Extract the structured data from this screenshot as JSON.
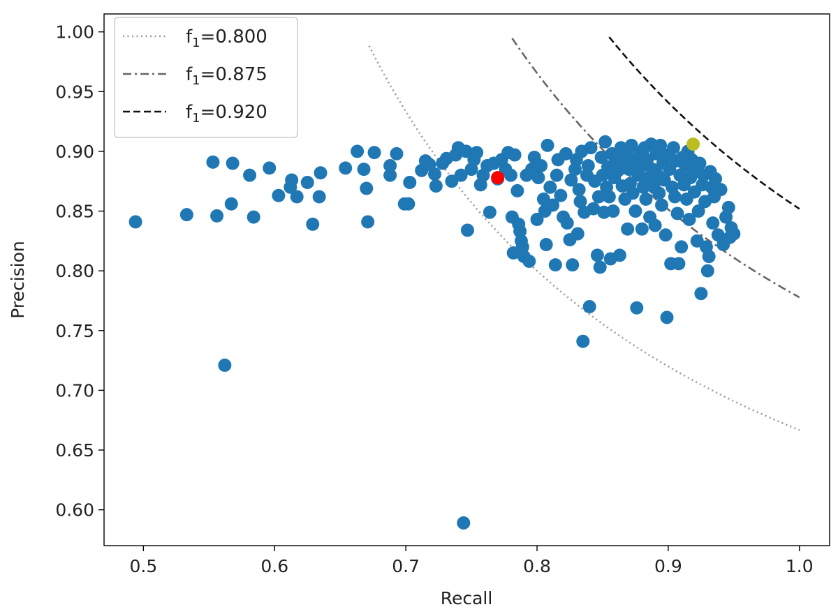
{
  "chart_data": {
    "type": "scatter",
    "xlabel": "Recall",
    "ylabel": "Precision",
    "xlim": [
      0.47,
      1.023
    ],
    "ylim": [
      0.57,
      1.015
    ],
    "xticks": [
      0.5,
      0.6,
      0.7,
      0.8,
      0.9,
      1.0
    ],
    "xtick_labels": [
      "0.5",
      "0.6",
      "0.7",
      "0.8",
      "0.9",
      "1.0"
    ],
    "yticks": [
      0.6,
      0.65,
      0.7,
      0.75,
      0.8,
      0.85,
      0.9,
      0.95,
      1.0
    ],
    "ytick_labels": [
      "0.60",
      "0.65",
      "0.70",
      "0.75",
      "0.80",
      "0.85",
      "0.90",
      "0.95",
      "1.00"
    ],
    "grid": false,
    "legend_position": "top-left",
    "colors": {
      "points": "#1f77b4",
      "highlight_red": "#ff0000",
      "highlight_olive": "#bcbd22"
    },
    "iso_f1_curves": [
      {
        "f1": 0.8,
        "label_prefix": "f",
        "label_sub": "1",
        "label_value": "=0.800",
        "style": "dotted",
        "color": "#999999",
        "recall_range": [
          0.672,
          1.0
        ]
      },
      {
        "f1": 0.875,
        "label_prefix": "f",
        "label_sub": "1",
        "label_value": "=0.875",
        "style": "dashdot",
        "color": "#666666",
        "recall_range": [
          0.781,
          1.0
        ]
      },
      {
        "f1": 0.92,
        "label_prefix": "f",
        "label_sub": "1",
        "label_value": "=0.920",
        "style": "dashed",
        "color": "#111111",
        "recall_range": [
          0.855,
          1.0
        ]
      }
    ],
    "highlight_points": [
      {
        "x": 0.77,
        "y": 0.878,
        "color": "#ff0000"
      },
      {
        "x": 0.919,
        "y": 0.906,
        "color": "#bcbd22"
      }
    ],
    "points": [
      [
        0.494,
        0.841
      ],
      [
        0.533,
        0.847
      ],
      [
        0.553,
        0.891
      ],
      [
        0.556,
        0.846
      ],
      [
        0.562,
        0.721
      ],
      [
        0.567,
        0.856
      ],
      [
        0.568,
        0.89
      ],
      [
        0.581,
        0.88
      ],
      [
        0.584,
        0.845
      ],
      [
        0.596,
        0.886
      ],
      [
        0.603,
        0.863
      ],
      [
        0.612,
        0.87
      ],
      [
        0.613,
        0.876
      ],
      [
        0.617,
        0.862
      ],
      [
        0.625,
        0.874
      ],
      [
        0.629,
        0.839
      ],
      [
        0.634,
        0.862
      ],
      [
        0.635,
        0.882
      ],
      [
        0.654,
        0.886
      ],
      [
        0.663,
        0.9
      ],
      [
        0.668,
        0.885
      ],
      [
        0.67,
        0.869
      ],
      [
        0.671,
        0.841
      ],
      [
        0.676,
        0.899
      ],
      [
        0.688,
        0.88
      ],
      [
        0.688,
        0.888
      ],
      [
        0.693,
        0.898
      ],
      [
        0.699,
        0.856
      ],
      [
        0.702,
        0.856
      ],
      [
        0.703,
        0.874
      ],
      [
        0.712,
        0.884
      ],
      [
        0.715,
        0.892
      ],
      [
        0.718,
        0.889
      ],
      [
        0.722,
        0.881
      ],
      [
        0.723,
        0.871
      ],
      [
        0.728,
        0.89
      ],
      [
        0.731,
        0.894
      ],
      [
        0.735,
        0.875
      ],
      [
        0.738,
        0.897
      ],
      [
        0.74,
        0.903
      ],
      [
        0.742,
        0.88
      ],
      [
        0.744,
        0.589
      ],
      [
        0.746,
        0.9
      ],
      [
        0.747,
        0.834
      ],
      [
        0.75,
        0.885
      ],
      [
        0.752,
        0.893
      ],
      [
        0.754,
        0.899
      ],
      [
        0.757,
        0.872
      ],
      [
        0.759,
        0.88
      ],
      [
        0.762,
        0.888
      ],
      [
        0.764,
        0.849
      ],
      [
        0.767,
        0.89
      ],
      [
        0.77,
        0.877
      ],
      [
        0.773,
        0.893
      ],
      [
        0.776,
        0.885
      ],
      [
        0.778,
        0.899
      ],
      [
        0.78,
        0.88
      ],
      [
        0.781,
        0.845
      ],
      [
        0.782,
        0.815
      ],
      [
        0.783,
        0.897
      ],
      [
        0.785,
        0.867
      ],
      [
        0.786,
        0.839
      ],
      [
        0.787,
        0.833
      ],
      [
        0.788,
        0.825
      ],
      [
        0.789,
        0.82
      ],
      [
        0.79,
        0.812
      ],
      [
        0.792,
        0.88
      ],
      [
        0.794,
        0.808
      ],
      [
        0.796,
        0.885
      ],
      [
        0.798,
        0.895
      ],
      [
        0.8,
        0.843
      ],
      [
        0.801,
        0.878
      ],
      [
        0.803,
        0.888
      ],
      [
        0.805,
        0.86
      ],
      [
        0.806,
        0.85
      ],
      [
        0.807,
        0.822
      ],
      [
        0.808,
        0.905
      ],
      [
        0.81,
        0.87
      ],
      [
        0.812,
        0.855
      ],
      [
        0.814,
        0.805
      ],
      [
        0.815,
        0.88
      ],
      [
        0.816,
        0.893
      ],
      [
        0.818,
        0.863
      ],
      [
        0.82,
        0.845
      ],
      [
        0.822,
        0.898
      ],
      [
        0.823,
        0.84
      ],
      [
        0.825,
        0.826
      ],
      [
        0.826,
        0.876
      ],
      [
        0.827,
        0.805
      ],
      [
        0.829,
        0.885
      ],
      [
        0.83,
        0.893
      ],
      [
        0.831,
        0.831
      ],
      [
        0.832,
        0.868
      ],
      [
        0.833,
        0.858
      ],
      [
        0.834,
        0.9
      ],
      [
        0.835,
        0.741
      ],
      [
        0.836,
        0.849
      ],
      [
        0.838,
        0.88
      ],
      [
        0.839,
        0.888
      ],
      [
        0.84,
        0.77
      ],
      [
        0.841,
        0.903
      ],
      [
        0.843,
        0.852
      ],
      [
        0.844,
        0.875
      ],
      [
        0.846,
        0.813
      ],
      [
        0.847,
        0.862
      ],
      [
        0.848,
        0.803
      ],
      [
        0.849,
        0.895
      ],
      [
        0.85,
        0.88
      ],
      [
        0.851,
        0.849
      ],
      [
        0.852,
        0.908
      ],
      [
        0.853,
        0.87
      ],
      [
        0.854,
        0.887
      ],
      [
        0.855,
        0.862
      ],
      [
        0.856,
        0.81
      ],
      [
        0.857,
        0.898
      ],
      [
        0.858,
        0.85
      ],
      [
        0.859,
        0.878
      ],
      [
        0.86,
        0.893
      ],
      [
        0.862,
        0.884
      ],
      [
        0.863,
        0.813
      ],
      [
        0.864,
        0.903
      ],
      [
        0.865,
        0.871
      ],
      [
        0.866,
        0.89
      ],
      [
        0.867,
        0.86
      ],
      [
        0.868,
        0.898
      ],
      [
        0.869,
        0.835
      ],
      [
        0.87,
        0.885
      ],
      [
        0.871,
        0.873
      ],
      [
        0.872,
        0.905
      ],
      [
        0.873,
        0.865
      ],
      [
        0.874,
        0.893
      ],
      [
        0.875,
        0.85
      ],
      [
        0.876,
        0.769
      ],
      [
        0.877,
        0.88
      ],
      [
        0.878,
        0.898
      ],
      [
        0.879,
        0.887
      ],
      [
        0.88,
        0.835
      ],
      [
        0.881,
        0.87
      ],
      [
        0.882,
        0.903
      ],
      [
        0.883,
        0.86
      ],
      [
        0.884,
        0.893
      ],
      [
        0.885,
        0.878
      ],
      [
        0.886,
        0.845
      ],
      [
        0.887,
        0.906
      ],
      [
        0.888,
        0.885
      ],
      [
        0.889,
        0.87
      ],
      [
        0.89,
        0.838
      ],
      [
        0.891,
        0.898
      ],
      [
        0.892,
        0.88
      ],
      [
        0.893,
        0.865
      ],
      [
        0.894,
        0.905
      ],
      [
        0.895,
        0.855
      ],
      [
        0.896,
        0.89
      ],
      [
        0.897,
        0.876
      ],
      [
        0.898,
        0.83
      ],
      [
        0.899,
        0.761
      ],
      [
        0.9,
        0.897
      ],
      [
        0.901,
        0.885
      ],
      [
        0.902,
        0.806
      ],
      [
        0.903,
        0.87
      ],
      [
        0.904,
        0.903
      ],
      [
        0.905,
        0.862
      ],
      [
        0.906,
        0.892
      ],
      [
        0.907,
        0.848
      ],
      [
        0.908,
        0.806
      ],
      [
        0.909,
        0.88
      ],
      [
        0.91,
        0.82
      ],
      [
        0.911,
        0.895
      ],
      [
        0.912,
        0.872
      ],
      [
        0.913,
        0.888
      ],
      [
        0.914,
        0.86
      ],
      [
        0.915,
        0.9
      ],
      [
        0.916,
        0.843
      ],
      [
        0.917,
        0.878
      ],
      [
        0.918,
        0.893
      ],
      [
        0.92,
        0.866
      ],
      [
        0.921,
        0.883
      ],
      [
        0.922,
        0.825
      ],
      [
        0.923,
        0.85
      ],
      [
        0.924,
        0.89
      ],
      [
        0.925,
        0.781
      ],
      [
        0.926,
        0.872
      ],
      [
        0.927,
        0.88
      ],
      [
        0.928,
        0.858
      ],
      [
        0.929,
        0.82
      ],
      [
        0.93,
        0.8
      ],
      [
        0.931,
        0.812
      ],
      [
        0.932,
        0.883
      ],
      [
        0.933,
        0.87
      ],
      [
        0.934,
        0.84
      ],
      [
        0.935,
        0.862
      ],
      [
        0.936,
        0.877
      ],
      [
        0.938,
        0.83
      ],
      [
        0.94,
        0.868
      ],
      [
        0.942,
        0.822
      ],
      [
        0.944,
        0.845
      ],
      [
        0.946,
        0.853
      ],
      [
        0.947,
        0.828
      ],
      [
        0.948,
        0.836
      ],
      [
        0.95,
        0.831
      ]
    ]
  }
}
